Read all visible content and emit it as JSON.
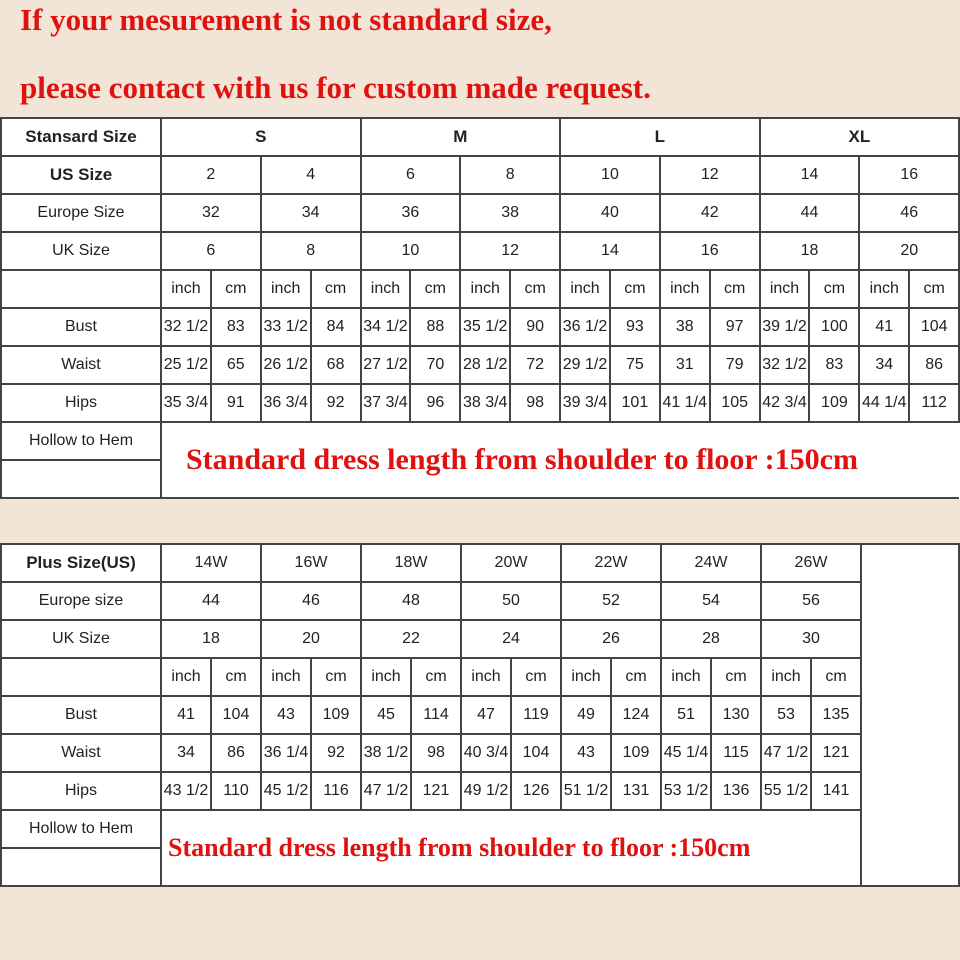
{
  "notice": {
    "line1": "If your mesurement is not standard size,",
    "line2": "please contact with us for custom made request."
  },
  "colors": {
    "notice_red": "#e0120f",
    "background": "#f2e5d7",
    "border": "#444444"
  },
  "standard_table": {
    "header_label": "Stansard Size",
    "groups": [
      "S",
      "M",
      "L",
      "XL"
    ],
    "us_label": "US Size",
    "us_sizes": [
      "2",
      "4",
      "6",
      "8",
      "10",
      "12",
      "14",
      "16"
    ],
    "europe_label": "Europe Size",
    "europe_sizes": [
      "32",
      "34",
      "36",
      "38",
      "40",
      "42",
      "44",
      "46"
    ],
    "uk_label": "UK Size",
    "uk_sizes": [
      "6",
      "8",
      "10",
      "12",
      "14",
      "16",
      "18",
      "20"
    ],
    "unit_inch": "inch",
    "unit_cm": "cm",
    "measurements": [
      {
        "label": "Bust",
        "values": [
          "32 1/2",
          "83",
          "33 1/2",
          "84",
          "34 1/2",
          "88",
          "35 1/2",
          "90",
          "36 1/2",
          "93",
          "38",
          "97",
          "39 1/2",
          "100",
          "41",
          "104"
        ]
      },
      {
        "label": "Waist",
        "values": [
          "25 1/2",
          "65",
          "26 1/2",
          "68",
          "27 1/2",
          "70",
          "28 1/2",
          "72",
          "29 1/2",
          "75",
          "31",
          "79",
          "32 1/2",
          "83",
          "34",
          "86"
        ]
      },
      {
        "label": "Hips",
        "values": [
          "35 3/4",
          "91",
          "36 3/4",
          "92",
          "37 3/4",
          "96",
          "38 3/4",
          "98",
          "39 3/4",
          "101",
          "41 1/4",
          "105",
          "42 3/4",
          "109",
          "44 1/4",
          "112"
        ]
      }
    ],
    "hollow_label": "Hollow to Hem",
    "length_note": "Standard dress length from shoulder to floor :150cm"
  },
  "plus_table": {
    "header_label": "Plus Size(US)",
    "us_sizes": [
      "14W",
      "16W",
      "18W",
      "20W",
      "22W",
      "24W",
      "26W"
    ],
    "europe_label": "Europe size",
    "europe_sizes": [
      "44",
      "46",
      "48",
      "50",
      "52",
      "54",
      "56"
    ],
    "uk_label": "UK Size",
    "uk_sizes": [
      "18",
      "20",
      "22",
      "24",
      "26",
      "28",
      "30"
    ],
    "unit_inch": "inch",
    "unit_cm": "cm",
    "measurements": [
      {
        "label": "Bust",
        "values": [
          "41",
          "104",
          "43",
          "109",
          "45",
          "114",
          "47",
          "119",
          "49",
          "124",
          "51",
          "130",
          "53",
          "135"
        ]
      },
      {
        "label": "Waist",
        "values": [
          "34",
          "86",
          "36 1/4",
          "92",
          "38 1/2",
          "98",
          "40 3/4",
          "104",
          "43",
          "109",
          "45 1/4",
          "115",
          "47 1/2",
          "121"
        ]
      },
      {
        "label": "Hips",
        "values": [
          "43 1/2",
          "110",
          "45 1/2",
          "116",
          "47 1/2",
          "121",
          "49 1/2",
          "126",
          "51 1/2",
          "131",
          "53 1/2",
          "136",
          "55 1/2",
          "141"
        ]
      }
    ],
    "hollow_label": "Hollow to Hem",
    "length_note": "Standard dress length from shoulder to floor :150cm"
  }
}
